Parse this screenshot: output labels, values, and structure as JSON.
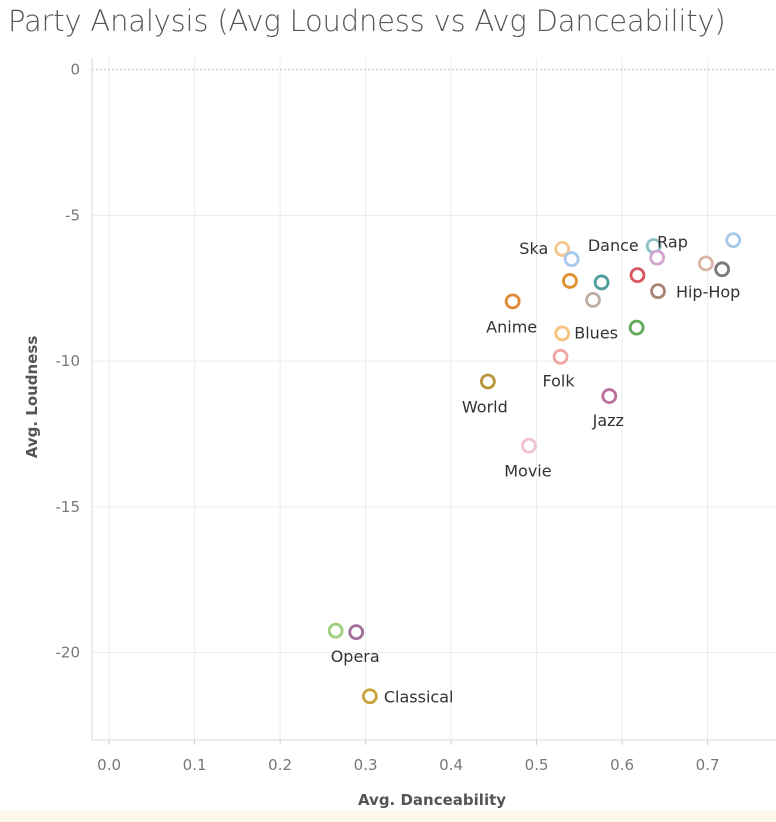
{
  "chart_data": {
    "type": "scatter",
    "title": "Party Analysis (Avg Loudness vs Avg Danceability)",
    "xlabel": "Avg. Danceability",
    "ylabel": "Avg. Loudness",
    "xlim": [
      -0.02,
      0.78
    ],
    "ylim": [
      -23,
      0.4
    ],
    "xticks": [
      "0.0",
      "0.1",
      "0.2",
      "0.3",
      "0.4",
      "0.5",
      "0.6",
      "0.7"
    ],
    "yticks": [
      "0",
      "-5",
      "-10",
      "-15",
      "-20"
    ],
    "grid": true,
    "legend": "none",
    "points": [
      {
        "x": 0.73,
        "y": -5.85,
        "color": "#a6c8e8",
        "label": ""
      },
      {
        "x": 0.698,
        "y": -6.65,
        "color": "#d9b5a7",
        "label": "Rap"
      },
      {
        "x": 0.717,
        "y": -6.85,
        "color": "#7a7a7a",
        "label": "Hip-Hop"
      },
      {
        "x": 0.637,
        "y": -6.05,
        "color": "#8fc1c4",
        "label": "Dance"
      },
      {
        "x": 0.641,
        "y": -6.45,
        "color": "#d4a6d1",
        "label": ""
      },
      {
        "x": 0.618,
        "y": -7.05,
        "color": "#d9545f",
        "label": ""
      },
      {
        "x": 0.642,
        "y": -7.6,
        "color": "#a88474",
        "label": ""
      },
      {
        "x": 0.576,
        "y": -7.3,
        "color": "#4c9f9a",
        "label": ""
      },
      {
        "x": 0.566,
        "y": -7.9,
        "color": "#bdaea6",
        "label": ""
      },
      {
        "x": 0.539,
        "y": -7.25,
        "color": "#e08f2e",
        "label": ""
      },
      {
        "x": 0.53,
        "y": -6.15,
        "color": "#f4c68a",
        "label": "Ska"
      },
      {
        "x": 0.541,
        "y": -6.5,
        "color": "#a8c9ec",
        "label": ""
      },
      {
        "x": 0.472,
        "y": -7.95,
        "color": "#df8c37",
        "label": "Anime"
      },
      {
        "x": 0.53,
        "y": -9.05,
        "color": "#f6c37f",
        "label": "Blues"
      },
      {
        "x": 0.617,
        "y": -8.85,
        "color": "#5ea956",
        "label": ""
      },
      {
        "x": 0.528,
        "y": -9.85,
        "color": "#f3a6a1",
        "label": "Folk"
      },
      {
        "x": 0.443,
        "y": -10.7,
        "color": "#b8963b",
        "label": "World"
      },
      {
        "x": 0.585,
        "y": -11.2,
        "color": "#b9709a",
        "label": "Jazz"
      },
      {
        "x": 0.491,
        "y": -12.9,
        "color": "#f2c3d0",
        "label": "Movie"
      },
      {
        "x": 0.265,
        "y": -19.25,
        "color": "#9fcf7e",
        "label": ""
      },
      {
        "x": 0.289,
        "y": -19.3,
        "color": "#a46d9c",
        "label": "Opera"
      },
      {
        "x": 0.305,
        "y": -21.5,
        "color": "#c9a43d",
        "label": "Classical"
      }
    ]
  }
}
